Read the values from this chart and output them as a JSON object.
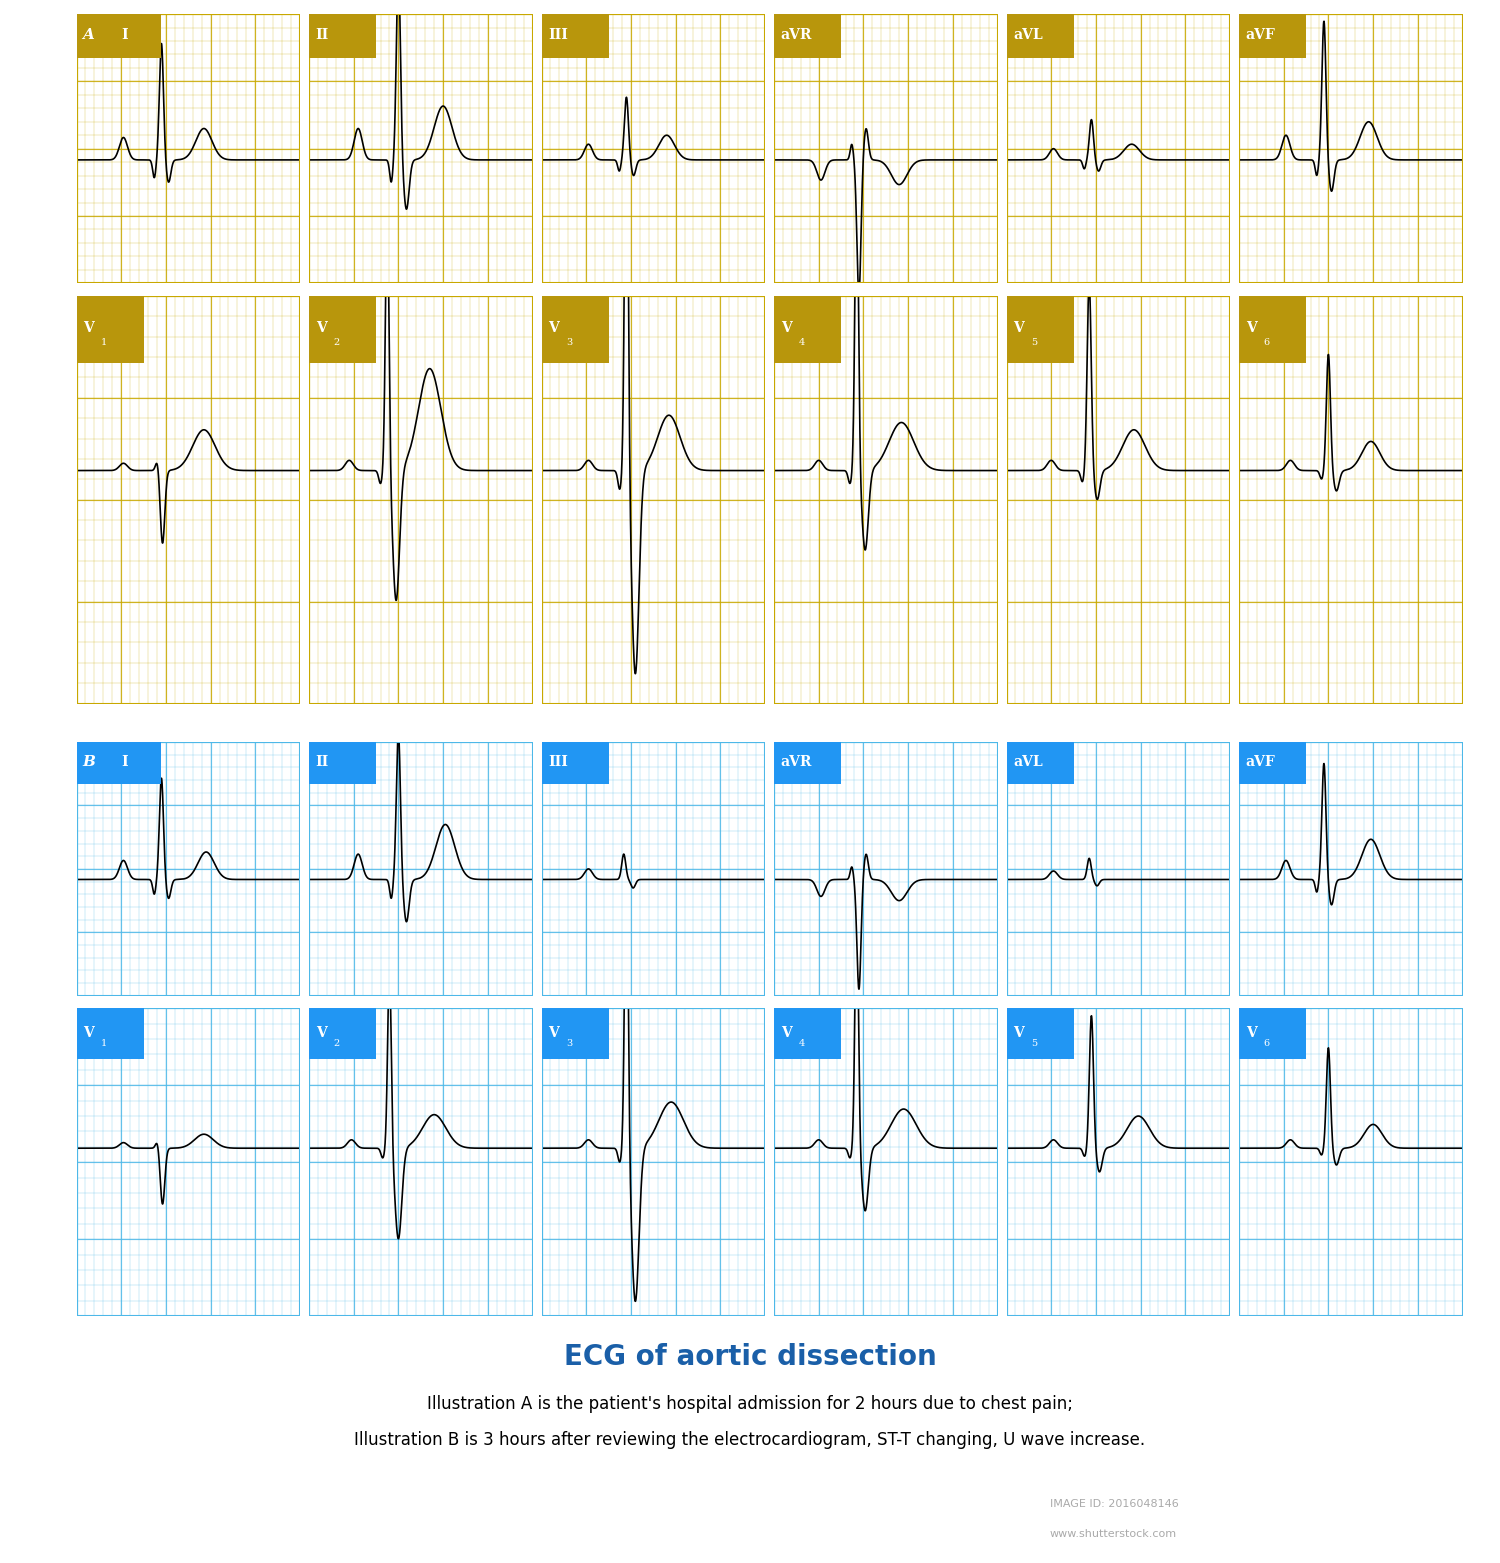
{
  "title": "ECG of aortic dissection",
  "subtitle1": "Illustration A is the patient's hospital admission for 2 hours due to chest pain;",
  "subtitle2": "Illustration B is 3 hours after reviewing the electrocardiogram, ST-T changing, U wave increase.",
  "title_color": "#1a5fa8",
  "title_fontsize": 20,
  "subtitle_fontsize": 12,
  "grid_color_A": "#c8a800",
  "grid_color_B": "#4db8e8",
  "bg_color_A": "#fffde8",
  "bg_color_B": "#e8f8ff",
  "label_bg_A": "#b8960c",
  "label_bg_B": "#2196f3",
  "footer_bg": "#2d3a4a",
  "footer_text": "#ffffff",
  "labels_row1": [
    "I",
    "II",
    "III",
    "aVR",
    "aVL",
    "aVF"
  ],
  "labels_row2": [
    "V1",
    "V2",
    "V3",
    "V4",
    "V5",
    "V6"
  ]
}
